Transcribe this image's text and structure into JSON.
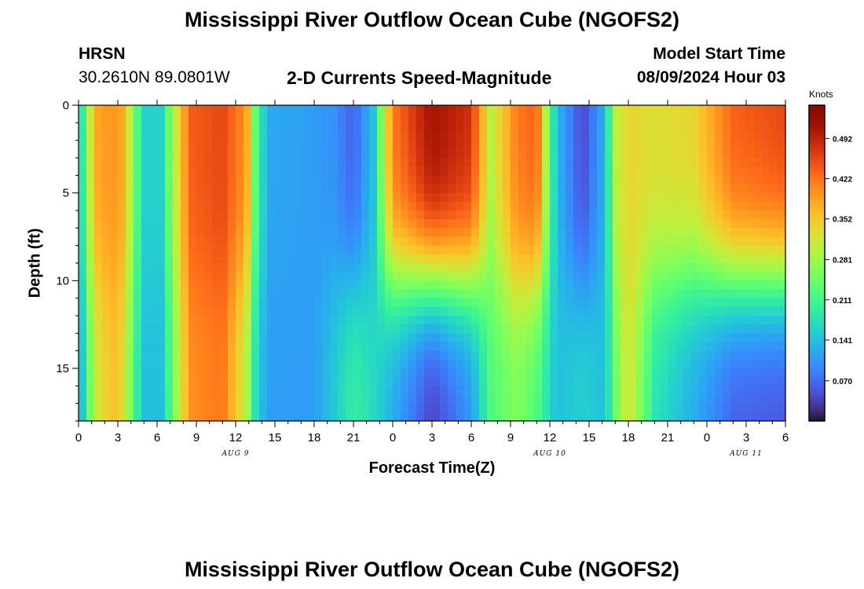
{
  "header": {
    "title": "Mississippi River Outflow Ocean Cube (NGOFS2)",
    "station": "HRSN",
    "coords": "30.2610N  89.0801W",
    "subtitle": "2-D Currents Speed-Magnitude",
    "model_label": "Model Start Time",
    "model_time": "08/09/2024 Hour 03"
  },
  "footer": {
    "title": "Mississippi River Outflow Ocean Cube (NGOFS2)"
  },
  "chart_data": {
    "type": "heatmap",
    "title": "2-D Currents Speed-Magnitude",
    "xlabel": "Forecast Time(Z)",
    "ylabel": "Depth (ft)",
    "x_range_hours": [
      0,
      54
    ],
    "y_range_ft": [
      0,
      18
    ],
    "x_tick_labels": [
      "0",
      "3",
      "6",
      "9",
      "12",
      "15",
      "18",
      "21",
      "0",
      "3",
      "6",
      "9",
      "12",
      "15",
      "18",
      "21",
      "0",
      "3",
      "6"
    ],
    "y_tick_labels": [
      "0",
      "5",
      "10",
      "15"
    ],
    "date_labels": [
      {
        "label": "AUG 9",
        "hour": 12
      },
      {
        "label": "AUG 10",
        "hour": 36
      },
      {
        "label": "AUG 11",
        "hour": 51
      }
    ],
    "colorbar": {
      "title": "Knots",
      "ticks": [
        "0.492",
        "0.422",
        "0.352",
        "0.281",
        "0.211",
        "0.141",
        "0.070"
      ],
      "tick_values": [
        0.492,
        0.422,
        0.352,
        0.281,
        0.211,
        0.141,
        0.07
      ],
      "range": [
        0.0,
        0.55
      ],
      "colormap": "turbo"
    },
    "time_profile": [
      {
        "t": 0.0,
        "top": 0.15,
        "bot": 0.1
      },
      {
        "t": 0.5,
        "top": 0.22,
        "bot": 0.18
      },
      {
        "t": 1.2,
        "top": 0.38,
        "bot": 0.3
      },
      {
        "t": 2.5,
        "top": 0.4,
        "bot": 0.36
      },
      {
        "t": 3.5,
        "top": 0.38,
        "bot": 0.33
      },
      {
        "t": 4.2,
        "top": 0.26,
        "bot": 0.22
      },
      {
        "t": 5.0,
        "top": 0.16,
        "bot": 0.14
      },
      {
        "t": 6.3,
        "top": 0.16,
        "bot": 0.14
      },
      {
        "t": 7.2,
        "top": 0.28,
        "bot": 0.24
      },
      {
        "t": 8.5,
        "top": 0.44,
        "bot": 0.4
      },
      {
        "t": 11.0,
        "top": 0.46,
        "bot": 0.42
      },
      {
        "t": 12.8,
        "top": 0.4,
        "bot": 0.3
      },
      {
        "t": 13.6,
        "top": 0.22,
        "bot": 0.16
      },
      {
        "t": 14.5,
        "top": 0.12,
        "bot": 0.11
      },
      {
        "t": 18.0,
        "top": 0.11,
        "bot": 0.11
      },
      {
        "t": 19.5,
        "top": 0.1,
        "bot": 0.15
      },
      {
        "t": 21.0,
        "top": 0.06,
        "bot": 0.2
      },
      {
        "t": 22.5,
        "top": 0.14,
        "bot": 0.17
      },
      {
        "t": 24.0,
        "top": 0.42,
        "bot": 0.12
      },
      {
        "t": 27.0,
        "top": 0.52,
        "bot": 0.03
      },
      {
        "t": 30.0,
        "top": 0.48,
        "bot": 0.1
      },
      {
        "t": 31.5,
        "top": 0.3,
        "bot": 0.22
      },
      {
        "t": 33.5,
        "top": 0.42,
        "bot": 0.26
      },
      {
        "t": 35.0,
        "top": 0.44,
        "bot": 0.22
      },
      {
        "t": 36.5,
        "top": 0.14,
        "bot": 0.14
      },
      {
        "t": 38.5,
        "top": 0.04,
        "bot": 0.16
      },
      {
        "t": 40.2,
        "top": 0.13,
        "bot": 0.14
      },
      {
        "t": 41.0,
        "top": 0.3,
        "bot": 0.24
      },
      {
        "t": 42.0,
        "top": 0.34,
        "bot": 0.33
      },
      {
        "t": 44.0,
        "top": 0.33,
        "bot": 0.18
      },
      {
        "t": 47.0,
        "top": 0.34,
        "bot": 0.12
      },
      {
        "t": 50.0,
        "top": 0.44,
        "bot": 0.06
      },
      {
        "t": 54.0,
        "top": 0.46,
        "bot": 0.05
      }
    ]
  }
}
